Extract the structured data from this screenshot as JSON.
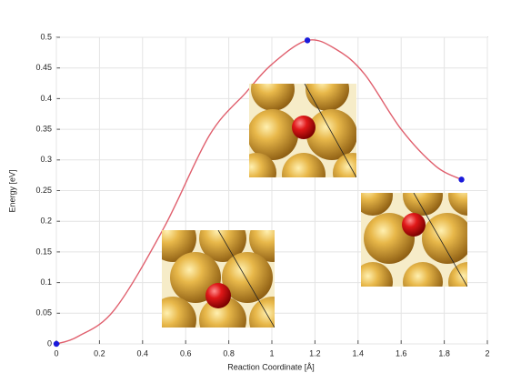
{
  "chart_data": {
    "type": "line",
    "xlabel": "Reaction Coordinate [Å]",
    "ylabel": "Energy [eV]",
    "xlim": [
      0,
      2
    ],
    "ylim": [
      0,
      0.5
    ],
    "xticks": [
      0,
      0.2,
      0.4,
      0.6,
      0.8,
      1,
      1.2,
      1.4,
      1.6,
      1.8,
      2
    ],
    "yticks": [
      0,
      0.05,
      0.1,
      0.15,
      0.2,
      0.25,
      0.3,
      0.35,
      0.4,
      0.45,
      0.5
    ],
    "grid": true,
    "series": [
      {
        "color": "#e0606e",
        "style": "line",
        "x": [
          0,
          0.1,
          0.27,
          0.5,
          0.71,
          0.88,
          1.0,
          1.165,
          1.3,
          1.43,
          1.6,
          1.76,
          1.88
        ],
        "values": [
          0,
          0.012,
          0.056,
          0.19,
          0.34,
          0.41,
          0.456,
          0.495,
          0.48,
          0.44,
          0.35,
          0.29,
          0.268
        ]
      },
      {
        "color": "#1a1adb",
        "style": "points",
        "x": [
          0,
          1.165,
          1.88
        ],
        "values": [
          0,
          0.495,
          0.268
        ]
      }
    ]
  }
}
